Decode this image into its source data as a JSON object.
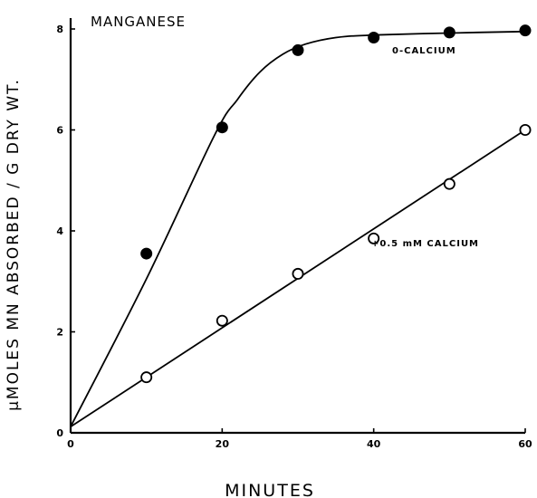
{
  "chart_data": {
    "type": "line",
    "title": "MANGANESE",
    "xlabel": "MINUTES",
    "ylabel": "µMOLES MN ABSORBED / G DRY WT.",
    "xlim": [
      0,
      60
    ],
    "ylim": [
      0,
      8
    ],
    "x_ticks": [
      "0",
      "20",
      "40",
      "60"
    ],
    "y_ticks": [
      "0",
      "2",
      "4",
      "6",
      "8"
    ],
    "grid": false,
    "series": [
      {
        "name": "0-CALCIUM",
        "marker": "filled-circle",
        "points": [
          [
            10,
            3.55
          ],
          [
            20,
            6.05
          ],
          [
            30,
            7.58
          ],
          [
            40,
            7.83
          ],
          [
            50,
            7.93
          ],
          [
            60,
            7.97
          ]
        ],
        "fit": [
          [
            0,
            0.12
          ],
          [
            10,
            3.05
          ],
          [
            19,
            5.9
          ],
          [
            22,
            6.6
          ],
          [
            25,
            7.15
          ],
          [
            28,
            7.5
          ],
          [
            31,
            7.7
          ],
          [
            35,
            7.83
          ],
          [
            40,
            7.88
          ],
          [
            50,
            7.92
          ],
          [
            60,
            7.95
          ]
        ]
      },
      {
        "name": "+0.5 mM CALCIUM",
        "marker": "open-circle",
        "points": [
          [
            10,
            1.1
          ],
          [
            20,
            2.22
          ],
          [
            30,
            3.15
          ],
          [
            40,
            3.85
          ],
          [
            50,
            4.93
          ],
          [
            60,
            6.0
          ]
        ],
        "fit": [
          [
            0,
            0.12
          ],
          [
            60,
            6.0
          ]
        ]
      }
    ]
  }
}
